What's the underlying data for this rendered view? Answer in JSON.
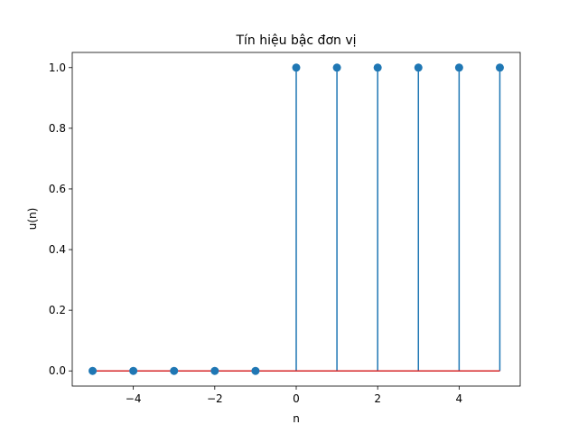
{
  "chart_data": {
    "type": "stem",
    "title": "Tín hiệu bậc đơn vị",
    "xlabel": "n",
    "ylabel": "u(n)",
    "xlim": [
      -5.5,
      5.5
    ],
    "ylim": [
      -0.05,
      1.05
    ],
    "x": [
      -5,
      -4,
      -3,
      -2,
      -1,
      0,
      1,
      2,
      3,
      4,
      5
    ],
    "values": [
      0,
      0,
      0,
      0,
      0,
      1,
      1,
      1,
      1,
      1,
      1
    ],
    "x_ticks": [
      -4,
      -2,
      0,
      2,
      4
    ],
    "x_tick_labels": [
      "−4",
      "−2",
      "0",
      "2",
      "4"
    ],
    "y_ticks": [
      0.0,
      0.2,
      0.4,
      0.6,
      0.8,
      1.0
    ],
    "y_tick_labels": [
      "0.0",
      "0.2",
      "0.4",
      "0.6",
      "0.8",
      "1.0"
    ],
    "grid": false,
    "colors": {
      "stem": "#1f77b4",
      "marker": "#1f77b4",
      "baseline": "#d62728"
    }
  }
}
